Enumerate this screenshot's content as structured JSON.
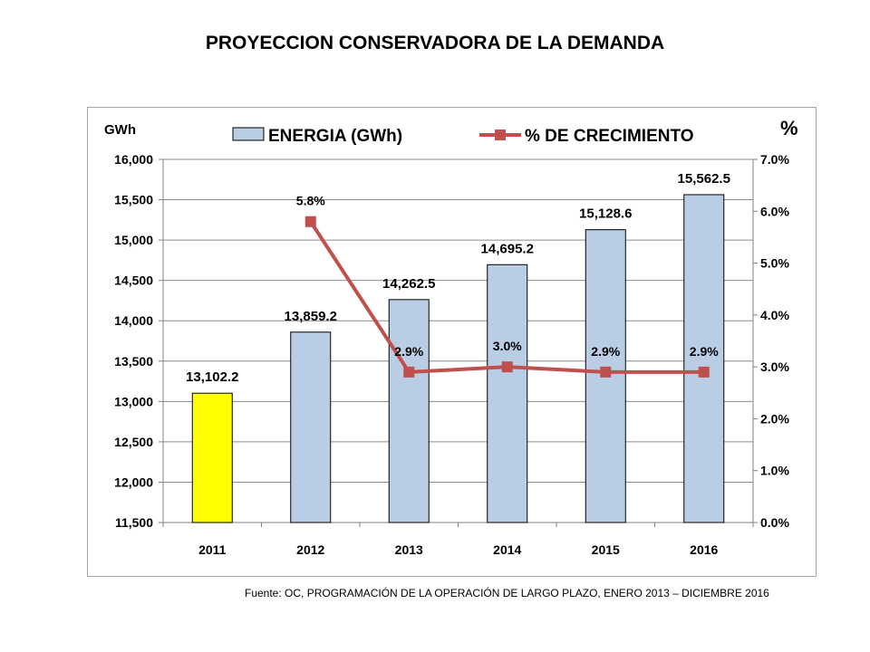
{
  "title": "PROYECCION CONSERVADORA DE LA DEMANDA",
  "source": "Fuente: OC, PROGRAMACIÓN DE LA OPERACIÓN DE LARGO PLAZO, ENERO 2013 – DICIEMBRE 2016",
  "chart_data": {
    "type": "bar",
    "categories": [
      "2011",
      "2012",
      "2013",
      "2014",
      "2015",
      "2016"
    ],
    "y_unit": "GWh",
    "y2_unit": "%",
    "ylim": [
      11500,
      16000
    ],
    "yticks": [
      "11,500",
      "12,000",
      "12,500",
      "13,000",
      "13,500",
      "14,000",
      "14,500",
      "15,000",
      "15,500",
      "16,000"
    ],
    "y2lim": [
      0,
      7
    ],
    "y2ticks": [
      "0.0%",
      "1.0%",
      "2.0%",
      "3.0%",
      "4.0%",
      "5.0%",
      "6.0%",
      "7.0%"
    ],
    "grid": true,
    "legend_position": "top",
    "series": [
      {
        "name": "ENERGIA (GWh)",
        "type": "bar",
        "axis": "left",
        "values": [
          13102.2,
          13859.2,
          14262.5,
          14695.2,
          15128.6,
          15562.5
        ],
        "labels": [
          "13,102.2",
          "13,859.2",
          "14,262.5",
          "14,695.2",
          "15,128.6",
          "15,562.5"
        ],
        "color": "#b9cde5",
        "highlight_color": "#ffff00",
        "highlight_index": 0
      },
      {
        "name": "% DE CRECIMIENTO",
        "type": "line",
        "axis": "right",
        "values": [
          null,
          5.8,
          2.9,
          3.0,
          2.9,
          2.9
        ],
        "labels": [
          "",
          "5.8%",
          "2.9%",
          "3.0%",
          "2.9%",
          "2.9%"
        ],
        "color": "#c0504d"
      }
    ]
  }
}
